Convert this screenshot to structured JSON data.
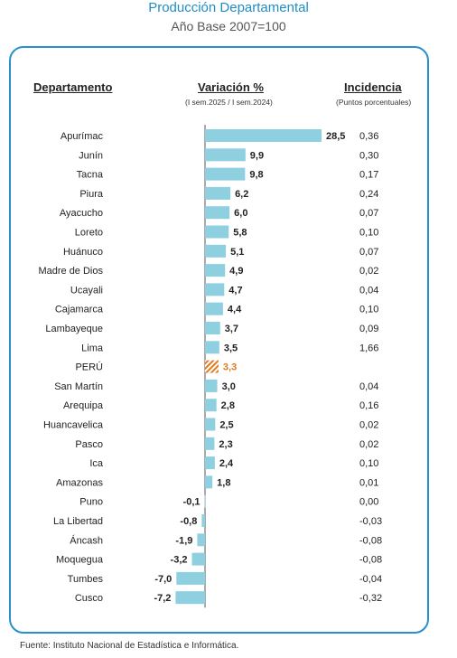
{
  "title": "Producción Departamental",
  "subtitle": "Año Base 2007=100",
  "headers": {
    "department": "Departamento",
    "variation": "Variación %",
    "variation_sub": "(I sem.2025 / I sem.2024)",
    "incidence": "Incidencia",
    "incidence_sub": "(Puntos porcentuales)"
  },
  "source": "Fuente: Instituto Nacional de Estadística e Informática.",
  "colors": {
    "bar": "#8ecfe0",
    "highlight": "#e07b1f",
    "accent": "#2a8fcb"
  },
  "chart_data": {
    "type": "bar",
    "orientation": "horizontal",
    "highlight_category": "PERÚ",
    "categories": [
      "Apurímac",
      "Junín",
      "Tacna",
      "Piura",
      "Ayacucho",
      "Loreto",
      "Huánuco",
      "Madre de Dios",
      "Ucayali",
      "Cajamarca",
      "Lambayeque",
      "Lima",
      "PERÚ",
      "San Martín",
      "Arequipa",
      "Huancavelica",
      "Pasco",
      "Ica",
      "Amazonas",
      "Puno",
      "La Libertad",
      "Áncash",
      "Moquegua",
      "Tumbes",
      "Cusco"
    ],
    "values": [
      28.5,
      9.9,
      9.8,
      6.2,
      6.0,
      5.8,
      5.1,
      4.9,
      4.7,
      4.4,
      3.7,
      3.5,
      3.3,
      3.0,
      2.8,
      2.5,
      2.3,
      2.4,
      1.8,
      -0.1,
      -0.8,
      -1.9,
      -3.2,
      -7.0,
      -7.2
    ],
    "value_labels": [
      "28,5",
      "9,9",
      "9,8",
      "6,2",
      "6,0",
      "5,8",
      "5,1",
      "4,9",
      "4,7",
      "4,4",
      "3,7",
      "3,5",
      "3,3",
      "3,0",
      "2,8",
      "2,5",
      "2,3",
      "2,4",
      "1,8",
      "-0,1",
      "-0,8",
      "-1,9",
      "-3,2",
      "-7,0",
      "-7,2"
    ],
    "incidence_labels": [
      "0,36",
      "0,30",
      "0,17",
      "0,24",
      "0,07",
      "0,10",
      "0,07",
      "0,02",
      "0,04",
      "0,10",
      "0,09",
      "1,66",
      "",
      "0,04",
      "0,16",
      "0,02",
      "0,02",
      "0,10",
      "0,01",
      "0,00",
      "-0,03",
      "-0,08",
      "-0,08",
      "-0,04",
      "-0,32"
    ]
  }
}
